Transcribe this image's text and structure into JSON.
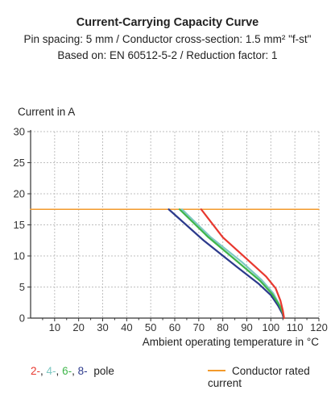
{
  "colors": {
    "pole2": "#e8382f",
    "pole4": "#7ec8c3",
    "pole6": "#3fb64a",
    "pole8": "#2c3a8c",
    "rated": "#f39a2c",
    "grid": "#bfbfbf",
    "axis": "#333333"
  },
  "chart_data": {
    "type": "line",
    "title": "Current-Carrying Capacity Curve",
    "subtitle": "Pin spacing: 5 mm / Conductor cross-section: 1.5 mm² \"f-st\"",
    "subtitle2": "Based on: EN 60512-5-2 / Reduction factor: 1",
    "ylabel": "Current in A",
    "xlabel": "Ambient operating temperature in °C",
    "xlim": [
      0,
      120
    ],
    "ylim": [
      0,
      30
    ],
    "xticks": [
      10,
      20,
      30,
      40,
      50,
      60,
      70,
      80,
      90,
      100,
      110,
      120
    ],
    "yticks": [
      0,
      5,
      10,
      15,
      20,
      25,
      30
    ],
    "grid": true,
    "series": [
      {
        "name": "2-",
        "color": "#e8382f",
        "points": [
          [
            71,
            17.5
          ],
          [
            80,
            13
          ],
          [
            90,
            9.5
          ],
          [
            98,
            6.7
          ],
          [
            102,
            4.8
          ],
          [
            104,
            2.8
          ],
          [
            105,
            1.2
          ],
          [
            105.5,
            0
          ]
        ]
      },
      {
        "name": "4-",
        "color": "#7ec8c3",
        "points": [
          [
            63,
            17.5
          ],
          [
            75,
            13
          ],
          [
            88,
            9
          ],
          [
            96,
            6.2
          ],
          [
            101,
            4
          ],
          [
            103.5,
            2.2
          ],
          [
            105,
            0.9
          ],
          [
            105.5,
            0
          ]
        ]
      },
      {
        "name": "6-",
        "color": "#3fb64a",
        "points": [
          [
            62,
            17.5
          ],
          [
            74,
            13
          ],
          [
            87,
            8.8
          ],
          [
            95.5,
            6
          ],
          [
            100.5,
            3.9
          ],
          [
            103.5,
            2.1
          ],
          [
            105,
            0.8
          ],
          [
            105.5,
            0
          ]
        ]
      },
      {
        "name": "8-",
        "color": "#2c3a8c",
        "points": [
          [
            57.5,
            17.5
          ],
          [
            72,
            12.5
          ],
          [
            86,
            8.2
          ],
          [
            95,
            5.5
          ],
          [
            100,
            3.7
          ],
          [
            103,
            2
          ],
          [
            104.8,
            0.7
          ],
          [
            105.3,
            0
          ]
        ]
      },
      {
        "name": "Conductor rated current",
        "color": "#f39a2c",
        "points": [
          [
            0,
            17.5
          ],
          [
            120,
            17.5
          ]
        ]
      }
    ]
  },
  "legend": {
    "pole_labels": [
      "2-",
      "4-",
      "6-",
      "8-"
    ],
    "pole_word": "pole",
    "rated_label": "Conductor rated current"
  }
}
